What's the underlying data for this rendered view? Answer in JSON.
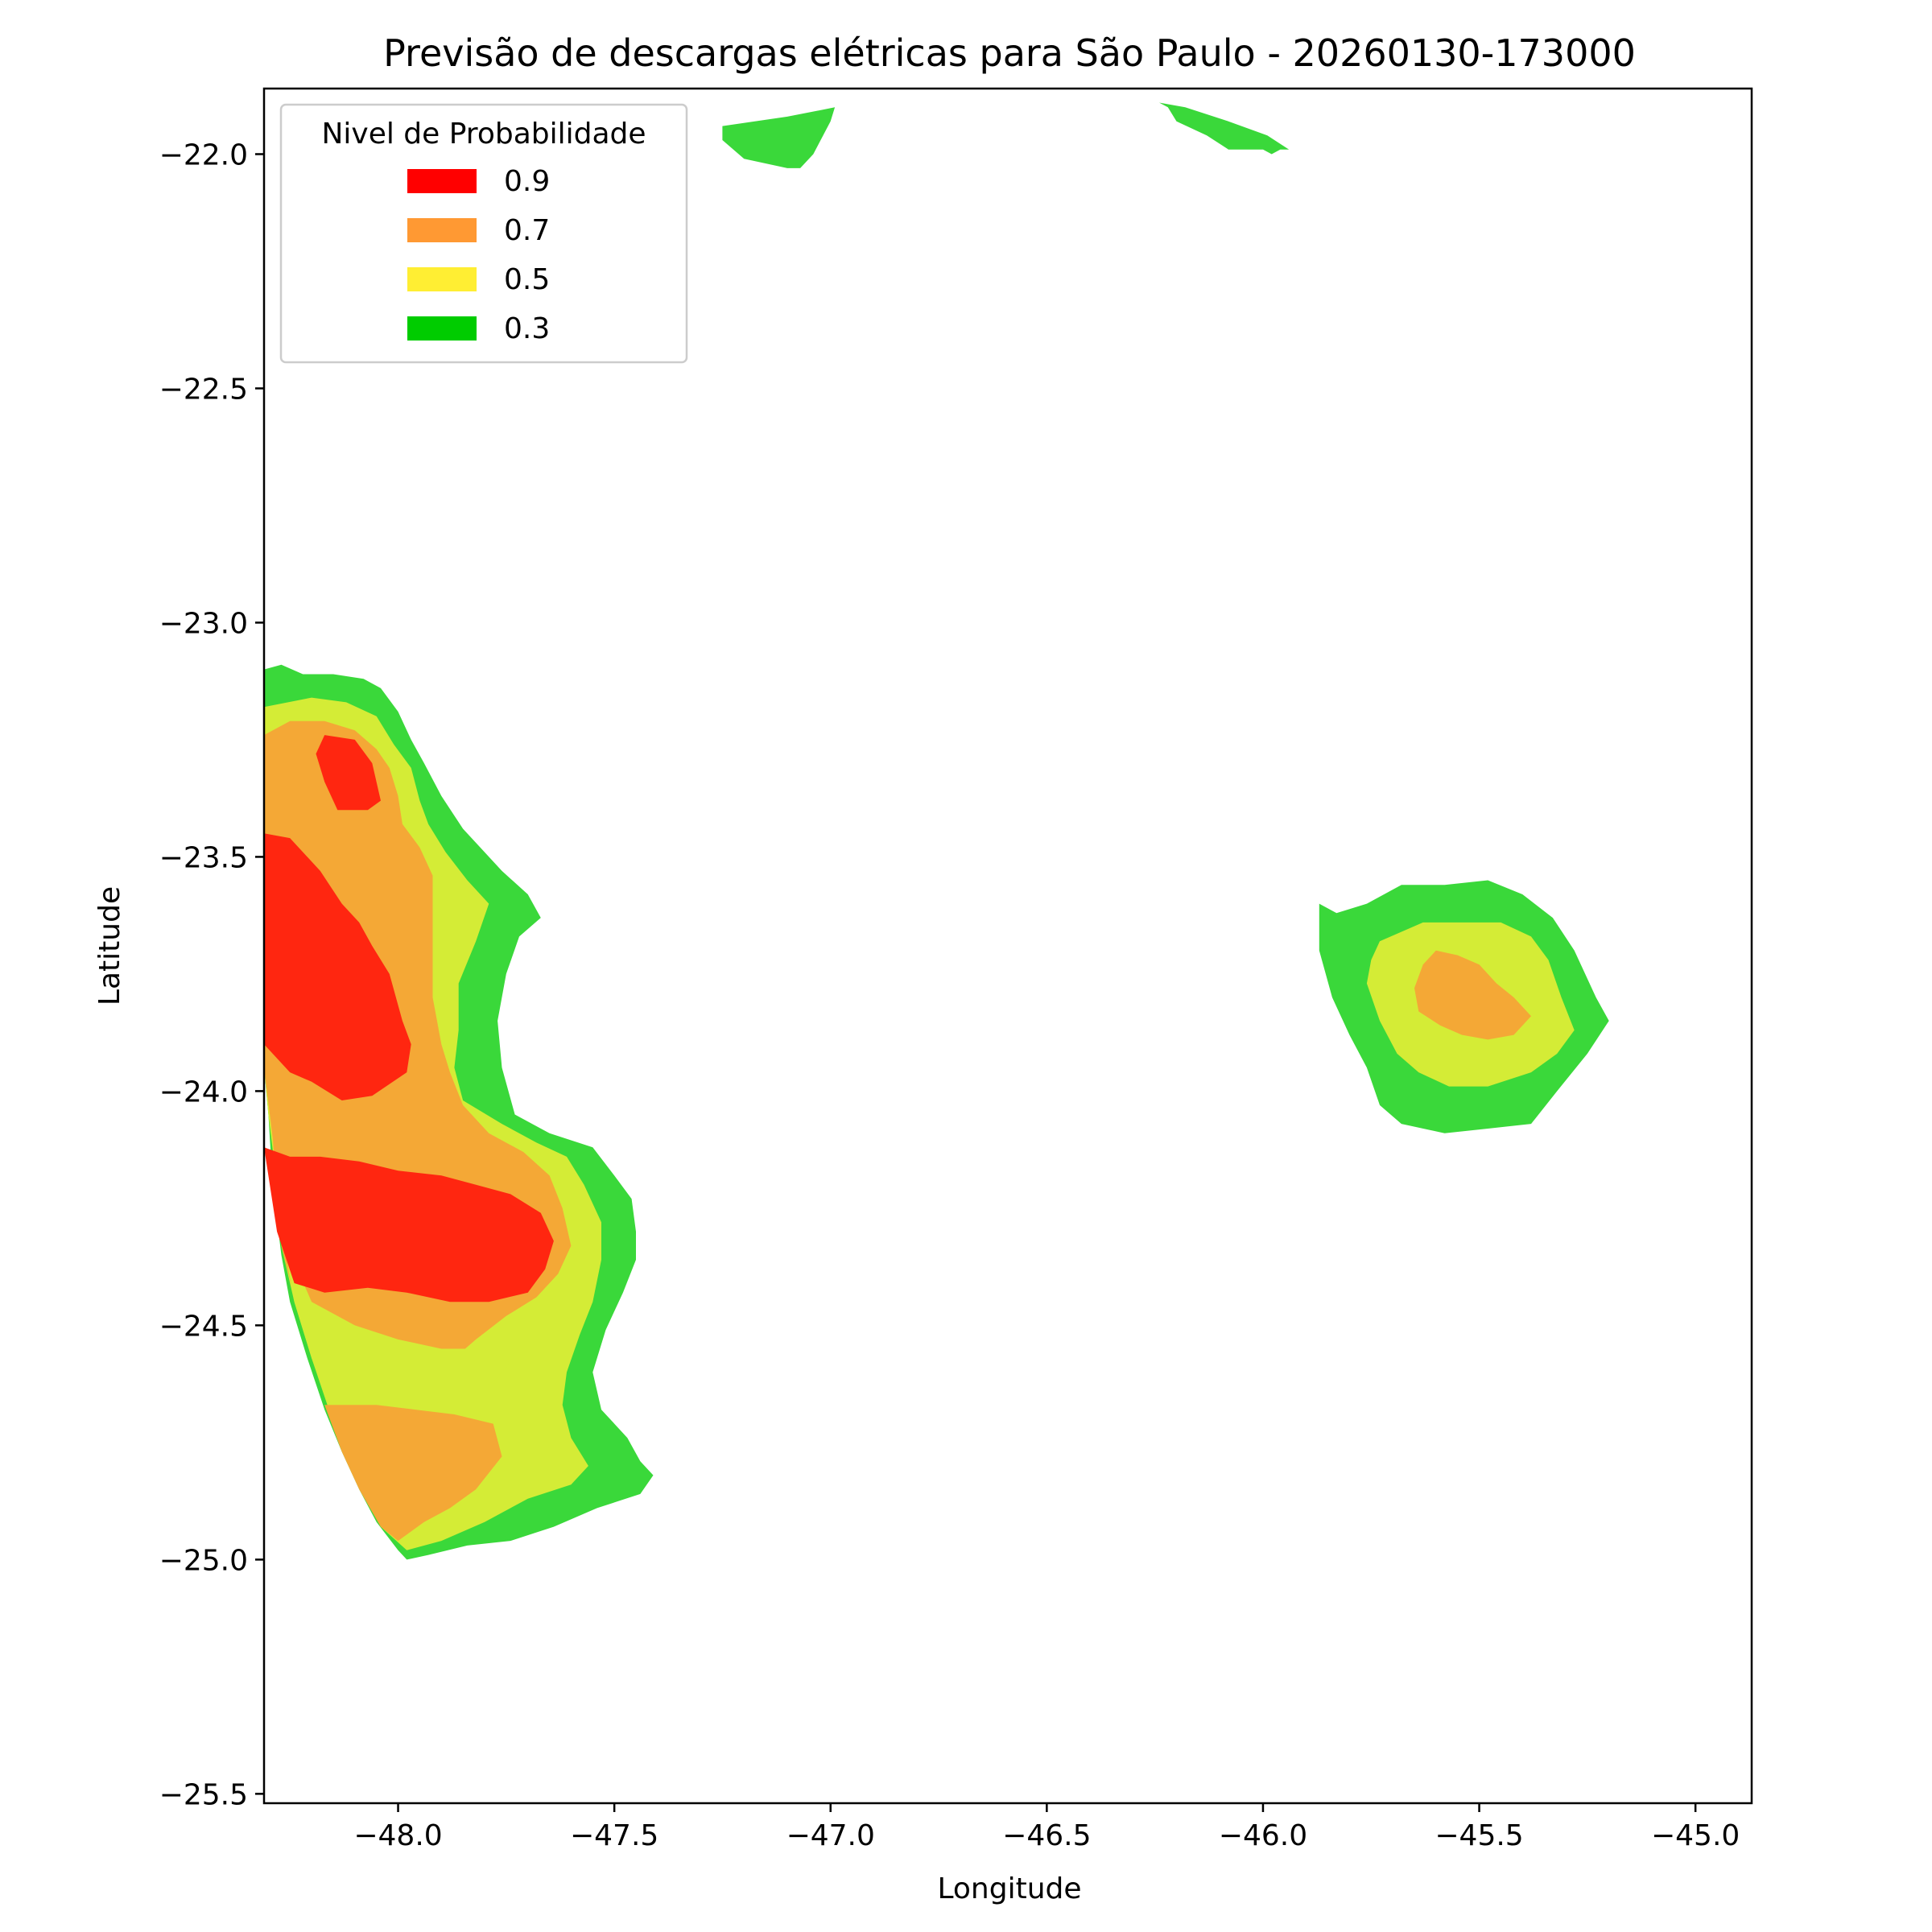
{
  "chart_data": {
    "type": "contour",
    "title": "Previsão de descargas elétricas para São Paulo - 20260130-173000",
    "xlabel": "Longitude",
    "ylabel": "Latitude",
    "xlim": [
      -48.31,
      -44.87
    ],
    "ylim": [
      -25.52,
      -21.86
    ],
    "xticks": [
      -48.0,
      -47.5,
      -47.0,
      -46.5,
      -46.0,
      -45.5,
      -45.0
    ],
    "yticks": [
      -22.0,
      -22.5,
      -23.0,
      -23.5,
      -24.0,
      -24.5,
      -25.0,
      -25.5
    ],
    "xtick_labels": [
      "−48.0",
      "−47.5",
      "−47.0",
      "−46.5",
      "−46.0",
      "−45.5",
      "−45.0"
    ],
    "ytick_labels": [
      "−22.0",
      "−22.5",
      "−23.0",
      "−23.5",
      "−24.0",
      "−24.5",
      "−25.0",
      "−25.5"
    ],
    "legend": {
      "title": "Nivel de Probabilidade",
      "placement": "upper-left",
      "entries": [
        {
          "label": "0.9",
          "color": "#ff0000"
        },
        {
          "label": "0.7",
          "color": "#ff9933"
        },
        {
          "label": "0.5",
          "color": "#ffee33"
        },
        {
          "label": "0.3",
          "color": "#00cc00"
        }
      ]
    },
    "fill_colors": {
      "0.3": "#3ad83a",
      "0.5": "#d4ec36",
      "0.7": "#f4a836",
      "0.9": "#ff2610"
    },
    "regions": [
      {
        "level": "0.3",
        "points": [
          [
            -47.25,
            -21.94
          ],
          [
            -47.1,
            -21.92
          ],
          [
            -46.99,
            -21.9
          ],
          [
            -47.0,
            -21.93
          ],
          [
            -47.04,
            -22.0
          ],
          [
            -47.07,
            -22.03
          ],
          [
            -47.1,
            -22.03
          ],
          [
            -47.2,
            -22.01
          ],
          [
            -47.25,
            -21.97
          ]
        ]
      },
      {
        "level": "0.3",
        "points": [
          [
            -46.24,
            -21.89
          ],
          [
            -46.18,
            -21.9
          ],
          [
            -46.08,
            -21.93
          ],
          [
            -45.99,
            -21.96
          ],
          [
            -45.94,
            -21.99
          ],
          [
            -45.96,
            -21.99
          ],
          [
            -45.98,
            -22.0
          ],
          [
            -46.0,
            -21.99
          ],
          [
            -46.08,
            -21.99
          ],
          [
            -46.13,
            -21.96
          ],
          [
            -46.2,
            -21.93
          ],
          [
            -46.22,
            -21.9
          ]
        ]
      },
      {
        "level": "0.3",
        "points": [
          [
            -48.31,
            -23.1
          ],
          [
            -48.27,
            -23.09
          ],
          [
            -48.22,
            -23.11
          ],
          [
            -48.15,
            -23.11
          ],
          [
            -48.08,
            -23.12
          ],
          [
            -48.04,
            -23.14
          ],
          [
            -48.0,
            -23.19
          ],
          [
            -47.97,
            -23.25
          ],
          [
            -47.94,
            -23.3
          ],
          [
            -47.9,
            -23.37
          ],
          [
            -47.85,
            -23.44
          ],
          [
            -47.81,
            -23.48
          ],
          [
            -47.76,
            -23.53
          ],
          [
            -47.7,
            -23.58
          ],
          [
            -47.67,
            -23.63
          ],
          [
            -47.72,
            -23.67
          ],
          [
            -47.75,
            -23.75
          ],
          [
            -47.77,
            -23.85
          ],
          [
            -47.76,
            -23.95
          ],
          [
            -47.73,
            -24.05
          ],
          [
            -47.65,
            -24.09
          ],
          [
            -47.55,
            -24.12
          ],
          [
            -47.5,
            -24.18
          ],
          [
            -47.46,
            -24.23
          ],
          [
            -47.45,
            -24.3
          ],
          [
            -47.45,
            -24.36
          ],
          [
            -47.48,
            -24.43
          ],
          [
            -47.52,
            -24.51
          ],
          [
            -47.55,
            -24.6
          ],
          [
            -47.53,
            -24.68
          ],
          [
            -47.47,
            -24.74
          ],
          [
            -47.44,
            -24.79
          ],
          [
            -47.41,
            -24.82
          ],
          [
            -47.44,
            -24.86
          ],
          [
            -47.54,
            -24.89
          ],
          [
            -47.64,
            -24.93
          ],
          [
            -47.74,
            -24.96
          ],
          [
            -47.84,
            -24.97
          ],
          [
            -47.93,
            -24.99
          ],
          [
            -47.98,
            -25.0
          ],
          [
            -48.0,
            -24.98
          ],
          [
            -48.05,
            -24.92
          ],
          [
            -48.09,
            -24.85
          ],
          [
            -48.13,
            -24.77
          ],
          [
            -48.17,
            -24.68
          ],
          [
            -48.21,
            -24.57
          ],
          [
            -48.25,
            -24.45
          ],
          [
            -48.27,
            -24.35
          ],
          [
            -48.29,
            -24.2
          ],
          [
            -48.3,
            -24.05
          ],
          [
            -48.31,
            -23.95
          ],
          [
            -48.31,
            -23.5
          ]
        ]
      },
      {
        "level": "0.5",
        "points": [
          [
            -48.31,
            -23.18
          ],
          [
            -48.2,
            -23.16
          ],
          [
            -48.12,
            -23.17
          ],
          [
            -48.05,
            -23.2
          ],
          [
            -48.01,
            -23.26
          ],
          [
            -47.97,
            -23.31
          ],
          [
            -47.95,
            -23.38
          ],
          [
            -47.93,
            -23.43
          ],
          [
            -47.89,
            -23.49
          ],
          [
            -47.84,
            -23.55
          ],
          [
            -47.79,
            -23.6
          ],
          [
            -47.82,
            -23.68
          ],
          [
            -47.86,
            -23.77
          ],
          [
            -47.86,
            -23.87
          ],
          [
            -47.87,
            -23.95
          ],
          [
            -47.85,
            -24.02
          ],
          [
            -47.76,
            -24.07
          ],
          [
            -47.68,
            -24.11
          ],
          [
            -47.61,
            -24.14
          ],
          [
            -47.57,
            -24.2
          ],
          [
            -47.53,
            -24.28
          ],
          [
            -47.53,
            -24.36
          ],
          [
            -47.55,
            -24.45
          ],
          [
            -47.58,
            -24.52
          ],
          [
            -47.61,
            -24.6
          ],
          [
            -47.62,
            -24.67
          ],
          [
            -47.6,
            -24.74
          ],
          [
            -47.56,
            -24.8
          ],
          [
            -47.6,
            -24.84
          ],
          [
            -47.7,
            -24.87
          ],
          [
            -47.8,
            -24.92
          ],
          [
            -47.9,
            -24.96
          ],
          [
            -47.98,
            -24.98
          ],
          [
            -48.04,
            -24.93
          ],
          [
            -48.08,
            -24.86
          ],
          [
            -48.12,
            -24.78
          ],
          [
            -48.16,
            -24.68
          ],
          [
            -48.2,
            -24.57
          ],
          [
            -48.24,
            -24.45
          ],
          [
            -48.27,
            -24.33
          ],
          [
            -48.28,
            -24.2
          ],
          [
            -48.3,
            -24.05
          ],
          [
            -48.31,
            -23.95
          ],
          [
            -48.31,
            -23.5
          ]
        ]
      },
      {
        "level": "0.7",
        "points": [
          [
            -48.31,
            -23.24
          ],
          [
            -48.25,
            -23.21
          ],
          [
            -48.17,
            -23.21
          ],
          [
            -48.1,
            -23.23
          ],
          [
            -48.05,
            -23.27
          ],
          [
            -48.02,
            -23.31
          ],
          [
            -48.0,
            -23.37
          ],
          [
            -47.99,
            -23.43
          ],
          [
            -47.95,
            -23.48
          ],
          [
            -47.92,
            -23.54
          ],
          [
            -47.92,
            -23.61
          ],
          [
            -47.92,
            -23.7
          ],
          [
            -47.92,
            -23.8
          ],
          [
            -47.9,
            -23.9
          ],
          [
            -47.88,
            -23.96
          ],
          [
            -47.85,
            -24.03
          ],
          [
            -47.79,
            -24.09
          ],
          [
            -47.71,
            -24.13
          ],
          [
            -47.65,
            -24.18
          ],
          [
            -47.62,
            -24.25
          ],
          [
            -47.6,
            -24.33
          ],
          [
            -47.63,
            -24.39
          ],
          [
            -47.68,
            -24.44
          ],
          [
            -47.75,
            -24.48
          ],
          [
            -47.82,
            -24.53
          ],
          [
            -47.87,
            -24.57
          ],
          [
            -47.93,
            -24.58
          ],
          [
            -48.0,
            -24.56
          ],
          [
            -48.06,
            -24.55
          ],
          [
            -48.12,
            -24.56
          ],
          [
            -48.18,
            -24.55
          ],
          [
            -48.24,
            -24.44
          ],
          [
            -48.27,
            -24.33
          ],
          [
            -48.28,
            -24.21
          ],
          [
            -48.29,
            -24.1
          ],
          [
            -48.31,
            -23.95
          ],
          [
            -48.31,
            -23.5
          ]
        ]
      },
      {
        "level": "0.5",
        "points": [
          [
            -48.27,
            -24.3
          ],
          [
            -48.24,
            -24.45
          ],
          [
            -48.2,
            -24.57
          ],
          [
            -48.16,
            -24.67
          ],
          [
            -48.1,
            -24.67
          ],
          [
            -48.0,
            -24.68
          ],
          [
            -47.93,
            -24.67
          ],
          [
            -47.84,
            -24.65
          ],
          [
            -47.78,
            -24.62
          ],
          [
            -47.74,
            -24.58
          ],
          [
            -47.8,
            -24.55
          ],
          [
            -47.9,
            -24.55
          ],
          [
            -48.0,
            -24.53
          ],
          [
            -48.1,
            -24.5
          ],
          [
            -48.2,
            -24.45
          ]
        ]
      },
      {
        "level": "0.7",
        "points": [
          [
            -48.17,
            -24.67
          ],
          [
            -48.13,
            -24.77
          ],
          [
            -48.09,
            -24.85
          ],
          [
            -48.04,
            -24.93
          ],
          [
            -48.0,
            -24.96
          ],
          [
            -47.94,
            -24.92
          ],
          [
            -47.88,
            -24.89
          ],
          [
            -47.82,
            -24.85
          ],
          [
            -47.76,
            -24.78
          ],
          [
            -47.78,
            -24.71
          ],
          [
            -47.87,
            -24.69
          ],
          [
            -47.96,
            -24.68
          ],
          [
            -48.05,
            -24.67
          ],
          [
            -48.12,
            -24.67
          ]
        ]
      },
      {
        "level": "0.9",
        "points": [
          [
            -48.31,
            -23.45
          ],
          [
            -48.25,
            -23.46
          ],
          [
            -48.18,
            -23.53
          ],
          [
            -48.13,
            -23.6
          ],
          [
            -48.09,
            -23.64
          ],
          [
            -48.06,
            -23.69
          ],
          [
            -48.02,
            -23.75
          ],
          [
            -47.99,
            -23.85
          ],
          [
            -47.97,
            -23.9
          ],
          [
            -47.98,
            -23.96
          ],
          [
            -48.06,
            -24.01
          ],
          [
            -48.13,
            -24.02
          ],
          [
            -48.2,
            -23.98
          ],
          [
            -48.25,
            -23.96
          ],
          [
            -48.31,
            -23.9
          ]
        ]
      },
      {
        "level": "0.9",
        "points": [
          [
            -48.31,
            -24.12
          ],
          [
            -48.25,
            -24.14
          ],
          [
            -48.18,
            -24.14
          ],
          [
            -48.09,
            -24.15
          ],
          [
            -48.0,
            -24.17
          ],
          [
            -47.9,
            -24.18
          ],
          [
            -47.82,
            -24.2
          ],
          [
            -47.74,
            -24.22
          ],
          [
            -47.67,
            -24.26
          ],
          [
            -47.64,
            -24.32
          ],
          [
            -47.66,
            -24.38
          ],
          [
            -47.7,
            -24.43
          ],
          [
            -47.79,
            -24.45
          ],
          [
            -47.88,
            -24.45
          ],
          [
            -47.98,
            -24.43
          ],
          [
            -48.07,
            -24.42
          ],
          [
            -48.17,
            -24.43
          ],
          [
            -48.24,
            -24.41
          ],
          [
            -48.28,
            -24.3
          ]
        ]
      },
      {
        "level": "0.9",
        "points": [
          [
            -48.17,
            -23.24
          ],
          [
            -48.1,
            -23.25
          ],
          [
            -48.06,
            -23.3
          ],
          [
            -48.04,
            -23.38
          ],
          [
            -48.07,
            -23.4
          ],
          [
            -48.14,
            -23.4
          ],
          [
            -48.17,
            -23.34
          ],
          [
            -48.19,
            -23.28
          ]
        ]
      },
      {
        "level": "0.3",
        "points": [
          [
            -45.87,
            -23.6
          ],
          [
            -45.83,
            -23.62
          ],
          [
            -45.76,
            -23.6
          ],
          [
            -45.68,
            -23.56
          ],
          [
            -45.58,
            -23.56
          ],
          [
            -45.48,
            -23.55
          ],
          [
            -45.4,
            -23.58
          ],
          [
            -45.33,
            -23.63
          ],
          [
            -45.28,
            -23.7
          ],
          [
            -45.23,
            -23.8
          ],
          [
            -45.2,
            -23.85
          ],
          [
            -45.25,
            -23.92
          ],
          [
            -45.32,
            -24.0
          ],
          [
            -45.38,
            -24.07
          ],
          [
            -45.48,
            -24.08
          ],
          [
            -45.58,
            -24.09
          ],
          [
            -45.68,
            -24.07
          ],
          [
            -45.73,
            -24.03
          ],
          [
            -45.76,
            -23.95
          ],
          [
            -45.8,
            -23.88
          ],
          [
            -45.84,
            -23.8
          ],
          [
            -45.87,
            -23.7
          ]
        ]
      },
      {
        "level": "0.5",
        "points": [
          [
            -45.73,
            -23.68
          ],
          [
            -45.63,
            -23.64
          ],
          [
            -45.53,
            -23.64
          ],
          [
            -45.45,
            -23.64
          ],
          [
            -45.38,
            -23.67
          ],
          [
            -45.34,
            -23.72
          ],
          [
            -45.31,
            -23.8
          ],
          [
            -45.28,
            -23.87
          ],
          [
            -45.32,
            -23.92
          ],
          [
            -45.38,
            -23.96
          ],
          [
            -45.48,
            -23.99
          ],
          [
            -45.57,
            -23.99
          ],
          [
            -45.64,
            -23.96
          ],
          [
            -45.69,
            -23.92
          ],
          [
            -45.73,
            -23.85
          ],
          [
            -45.76,
            -23.77
          ],
          [
            -45.75,
            -23.72
          ]
        ]
      },
      {
        "level": "0.7",
        "points": [
          [
            -45.6,
            -23.7
          ],
          [
            -45.55,
            -23.71
          ],
          [
            -45.5,
            -23.73
          ],
          [
            -45.46,
            -23.77
          ],
          [
            -45.42,
            -23.8
          ],
          [
            -45.38,
            -23.84
          ],
          [
            -45.42,
            -23.88
          ],
          [
            -45.48,
            -23.89
          ],
          [
            -45.54,
            -23.88
          ],
          [
            -45.59,
            -23.86
          ],
          [
            -45.64,
            -23.83
          ],
          [
            -45.65,
            -23.78
          ],
          [
            -45.63,
            -23.73
          ]
        ]
      }
    ]
  }
}
